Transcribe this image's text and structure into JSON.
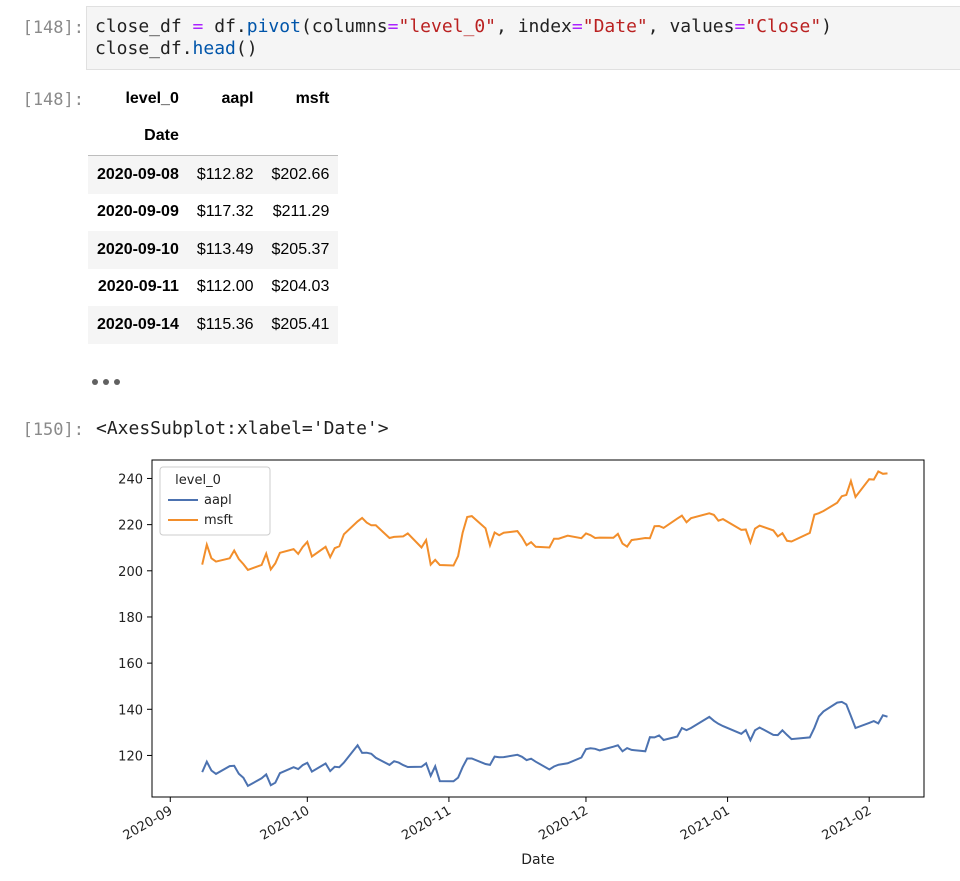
{
  "cell_in": {
    "prompt": "[148]:",
    "code_line1": {
      "a": "close_df ",
      "b": "=",
      "c": " df.",
      "d": "pivot",
      "e": "(columns",
      "f": "=",
      "g": "\"level_0\"",
      "h": ", index",
      "i": "=",
      "j": "\"Date\"",
      "k": ", values",
      "l": "=",
      "m": "\"Close\"",
      "n": ")"
    },
    "code_line2": {
      "a": "close_df.",
      "b": "head",
      "c": "()"
    }
  },
  "cell_out": {
    "prompt": "[148]:",
    "table": {
      "columns_name": "level_0",
      "columns": [
        "aapl",
        "msft"
      ],
      "index_name": "Date",
      "rows": [
        {
          "date": "2020-09-08",
          "aapl": "$112.82",
          "msft": "$202.66"
        },
        {
          "date": "2020-09-09",
          "aapl": "$117.32",
          "msft": "$211.29"
        },
        {
          "date": "2020-09-10",
          "aapl": "$113.49",
          "msft": "$205.37"
        },
        {
          "date": "2020-09-11",
          "aapl": "$112.00",
          "msft": "$204.03"
        },
        {
          "date": "2020-09-14",
          "aapl": "$115.36",
          "msft": "$205.41"
        }
      ]
    }
  },
  "cell_plot": {
    "prompt": "[150]:",
    "repr": "<AxesSubplot:xlabel='Date'>"
  },
  "chart_data": {
    "type": "line",
    "xlabel": "Date",
    "ylabel": "",
    "x_type": "date",
    "xlim": [
      "2020-08-28",
      "2021-02-13"
    ],
    "ylim": [
      102,
      248
    ],
    "x_ticks": [
      "2020-09",
      "2020-10",
      "2020-11",
      "2020-12",
      "2021-01",
      "2021-02"
    ],
    "y_ticks": [
      120,
      140,
      160,
      180,
      200,
      220,
      240
    ],
    "grid": false,
    "legend": {
      "title": "level_0",
      "placement": "top-left"
    },
    "series": [
      {
        "name": "aapl",
        "color": "#4c72b0",
        "points": [
          [
            "2020-09-08",
            112.8
          ],
          [
            "2020-09-09",
            117.3
          ],
          [
            "2020-09-10",
            113.5
          ],
          [
            "2020-09-11",
            112.0
          ],
          [
            "2020-09-14",
            115.4
          ],
          [
            "2020-09-15",
            115.5
          ],
          [
            "2020-09-16",
            112.1
          ],
          [
            "2020-09-17",
            110.3
          ],
          [
            "2020-09-18",
            106.8
          ],
          [
            "2020-09-21",
            110.1
          ],
          [
            "2020-09-22",
            111.8
          ],
          [
            "2020-09-23",
            107.1
          ],
          [
            "2020-09-24",
            108.2
          ],
          [
            "2020-09-25",
            112.3
          ],
          [
            "2020-09-28",
            114.9
          ],
          [
            "2020-09-29",
            114.1
          ],
          [
            "2020-09-30",
            115.8
          ],
          [
            "2020-10-01",
            116.8
          ],
          [
            "2020-10-02",
            113.0
          ],
          [
            "2020-10-05",
            116.5
          ],
          [
            "2020-10-06",
            113.2
          ],
          [
            "2020-10-07",
            115.1
          ],
          [
            "2020-10-08",
            114.9
          ],
          [
            "2020-10-09",
            116.9
          ],
          [
            "2020-10-12",
            124.4
          ],
          [
            "2020-10-13",
            121.1
          ],
          [
            "2020-10-14",
            121.2
          ],
          [
            "2020-10-15",
            120.7
          ],
          [
            "2020-10-16",
            119.0
          ],
          [
            "2020-10-19",
            115.9
          ],
          [
            "2020-10-20",
            117.5
          ],
          [
            "2020-10-21",
            116.9
          ],
          [
            "2020-10-22",
            115.8
          ],
          [
            "2020-10-23",
            115.0
          ],
          [
            "2020-10-26",
            115.1
          ],
          [
            "2020-10-27",
            116.6
          ],
          [
            "2020-10-28",
            111.2
          ],
          [
            "2020-10-29",
            115.3
          ],
          [
            "2020-10-30",
            108.9
          ],
          [
            "2020-11-02",
            108.8
          ],
          [
            "2020-11-03",
            110.4
          ],
          [
            "2020-11-04",
            114.9
          ],
          [
            "2020-11-05",
            118.7
          ],
          [
            "2020-11-06",
            118.7
          ],
          [
            "2020-11-09",
            116.3
          ],
          [
            "2020-11-10",
            115.9
          ],
          [
            "2020-11-11",
            119.5
          ],
          [
            "2020-11-12",
            119.2
          ],
          [
            "2020-11-13",
            119.3
          ],
          [
            "2020-11-16",
            120.3
          ],
          [
            "2020-11-17",
            119.4
          ],
          [
            "2020-11-18",
            118.0
          ],
          [
            "2020-11-19",
            118.6
          ],
          [
            "2020-11-20",
            117.3
          ],
          [
            "2020-11-23",
            113.9
          ],
          [
            "2020-11-24",
            115.2
          ],
          [
            "2020-11-25",
            116.0
          ],
          [
            "2020-11-27",
            116.6
          ],
          [
            "2020-11-30",
            119.1
          ],
          [
            "2020-12-01",
            122.7
          ],
          [
            "2020-12-02",
            123.1
          ],
          [
            "2020-12-03",
            122.9
          ],
          [
            "2020-12-04",
            122.2
          ],
          [
            "2020-12-07",
            123.8
          ],
          [
            "2020-12-08",
            124.4
          ],
          [
            "2020-12-09",
            121.8
          ],
          [
            "2020-12-10",
            123.2
          ],
          [
            "2020-12-11",
            122.4
          ],
          [
            "2020-12-14",
            121.8
          ],
          [
            "2020-12-15",
            127.9
          ],
          [
            "2020-12-16",
            127.8
          ],
          [
            "2020-12-17",
            128.7
          ],
          [
            "2020-12-18",
            126.7
          ],
          [
            "2020-12-21",
            128.2
          ],
          [
            "2020-12-22",
            131.9
          ],
          [
            "2020-12-23",
            131.0
          ],
          [
            "2020-12-24",
            131.9
          ],
          [
            "2020-12-28",
            136.7
          ],
          [
            "2020-12-29",
            135.0
          ],
          [
            "2020-12-30",
            133.7
          ],
          [
            "2020-12-31",
            132.7
          ],
          [
            "2021-01-04",
            129.4
          ],
          [
            "2021-01-05",
            131.0
          ],
          [
            "2021-01-06",
            126.6
          ],
          [
            "2021-01-07",
            130.9
          ],
          [
            "2021-01-08",
            132.1
          ],
          [
            "2021-01-11",
            128.9
          ],
          [
            "2021-01-12",
            128.8
          ],
          [
            "2021-01-13",
            130.9
          ],
          [
            "2021-01-14",
            128.9
          ],
          [
            "2021-01-15",
            127.1
          ],
          [
            "2021-01-19",
            127.8
          ],
          [
            "2021-01-20",
            132.0
          ],
          [
            "2021-01-21",
            136.9
          ],
          [
            "2021-01-22",
            139.1
          ],
          [
            "2021-01-25",
            142.9
          ],
          [
            "2021-01-26",
            143.2
          ],
          [
            "2021-01-27",
            142.1
          ],
          [
            "2021-01-28",
            137.1
          ],
          [
            "2021-01-29",
            131.9
          ],
          [
            "2021-02-01",
            134.1
          ],
          [
            "2021-02-02",
            134.9
          ],
          [
            "2021-02-03",
            133.9
          ],
          [
            "2021-02-04",
            137.4
          ],
          [
            "2021-02-05",
            136.8
          ]
        ]
      },
      {
        "name": "msft",
        "color": "#f28e2b",
        "points": [
          [
            "2020-09-08",
            202.7
          ],
          [
            "2020-09-09",
            211.3
          ],
          [
            "2020-09-10",
            205.4
          ],
          [
            "2020-09-11",
            204.0
          ],
          [
            "2020-09-14",
            205.4
          ],
          [
            "2020-09-15",
            208.8
          ],
          [
            "2020-09-16",
            205.1
          ],
          [
            "2020-09-17",
            202.9
          ],
          [
            "2020-09-18",
            200.4
          ],
          [
            "2020-09-21",
            202.5
          ],
          [
            "2020-09-22",
            207.4
          ],
          [
            "2020-09-23",
            200.6
          ],
          [
            "2020-09-24",
            203.2
          ],
          [
            "2020-09-25",
            207.8
          ],
          [
            "2020-09-28",
            209.4
          ],
          [
            "2020-09-29",
            207.3
          ],
          [
            "2020-09-30",
            210.3
          ],
          [
            "2020-10-01",
            212.5
          ],
          [
            "2020-10-02",
            206.2
          ],
          [
            "2020-10-05",
            210.4
          ],
          [
            "2020-10-06",
            205.9
          ],
          [
            "2020-10-07",
            209.8
          ],
          [
            "2020-10-08",
            210.6
          ],
          [
            "2020-10-09",
            215.8
          ],
          [
            "2020-10-12",
            221.4
          ],
          [
            "2020-10-13",
            222.9
          ],
          [
            "2020-10-14",
            220.9
          ],
          [
            "2020-10-15",
            219.7
          ],
          [
            "2020-10-16",
            219.7
          ],
          [
            "2020-10-19",
            214.2
          ],
          [
            "2020-10-20",
            214.7
          ],
          [
            "2020-10-21",
            214.8
          ],
          [
            "2020-10-22",
            214.9
          ],
          [
            "2020-10-23",
            216.2
          ],
          [
            "2020-10-26",
            210.1
          ],
          [
            "2020-10-27",
            213.3
          ],
          [
            "2020-10-28",
            202.7
          ],
          [
            "2020-10-29",
            204.7
          ],
          [
            "2020-10-30",
            202.5
          ],
          [
            "2020-11-02",
            202.3
          ],
          [
            "2020-11-03",
            206.4
          ],
          [
            "2020-11-04",
            216.4
          ],
          [
            "2020-11-05",
            223.3
          ],
          [
            "2020-11-06",
            223.7
          ],
          [
            "2020-11-09",
            218.4
          ],
          [
            "2020-11-10",
            211.0
          ],
          [
            "2020-11-11",
            216.6
          ],
          [
            "2020-11-12",
            215.4
          ],
          [
            "2020-11-13",
            216.5
          ],
          [
            "2020-11-16",
            217.2
          ],
          [
            "2020-11-17",
            214.5
          ],
          [
            "2020-11-18",
            211.1
          ],
          [
            "2020-11-19",
            212.4
          ],
          [
            "2020-11-20",
            210.4
          ],
          [
            "2020-11-23",
            210.1
          ],
          [
            "2020-11-24",
            213.9
          ],
          [
            "2020-11-25",
            213.9
          ],
          [
            "2020-11-27",
            215.2
          ],
          [
            "2020-11-30",
            214.1
          ],
          [
            "2020-12-01",
            216.2
          ],
          [
            "2020-12-02",
            215.4
          ],
          [
            "2020-12-03",
            214.2
          ],
          [
            "2020-12-04",
            214.4
          ],
          [
            "2020-12-07",
            214.3
          ],
          [
            "2020-12-08",
            216.0
          ],
          [
            "2020-12-09",
            211.8
          ],
          [
            "2020-12-10",
            210.5
          ],
          [
            "2020-12-11",
            213.3
          ],
          [
            "2020-12-14",
            214.2
          ],
          [
            "2020-12-15",
            214.1
          ],
          [
            "2020-12-16",
            219.3
          ],
          [
            "2020-12-17",
            219.4
          ],
          [
            "2020-12-18",
            218.6
          ],
          [
            "2020-12-21",
            222.6
          ],
          [
            "2020-12-22",
            223.9
          ],
          [
            "2020-12-23",
            221.0
          ],
          [
            "2020-12-24",
            222.8
          ],
          [
            "2020-12-28",
            224.9
          ],
          [
            "2020-12-29",
            224.2
          ],
          [
            "2020-12-30",
            221.7
          ],
          [
            "2020-12-31",
            222.4
          ],
          [
            "2021-01-04",
            217.7
          ],
          [
            "2021-01-05",
            217.9
          ],
          [
            "2021-01-06",
            212.3
          ],
          [
            "2021-01-07",
            218.3
          ],
          [
            "2021-01-08",
            219.6
          ],
          [
            "2021-01-11",
            217.5
          ],
          [
            "2021-01-12",
            214.9
          ],
          [
            "2021-01-13",
            216.3
          ],
          [
            "2021-01-14",
            213.0
          ],
          [
            "2021-01-15",
            212.7
          ],
          [
            "2021-01-19",
            216.4
          ],
          [
            "2021-01-20",
            224.3
          ],
          [
            "2021-01-21",
            224.97
          ],
          [
            "2021-01-22",
            225.9
          ],
          [
            "2021-01-25",
            229.5
          ],
          [
            "2021-01-26",
            232.3
          ],
          [
            "2021-01-27",
            232.9
          ],
          [
            "2021-01-28",
            238.9
          ],
          [
            "2021-01-29",
            231.96
          ],
          [
            "2021-02-01",
            239.7
          ],
          [
            "2021-02-02",
            239.5
          ],
          [
            "2021-02-03",
            243.0
          ],
          [
            "2021-02-04",
            242.0
          ],
          [
            "2021-02-05",
            242.2
          ]
        ]
      }
    ]
  }
}
